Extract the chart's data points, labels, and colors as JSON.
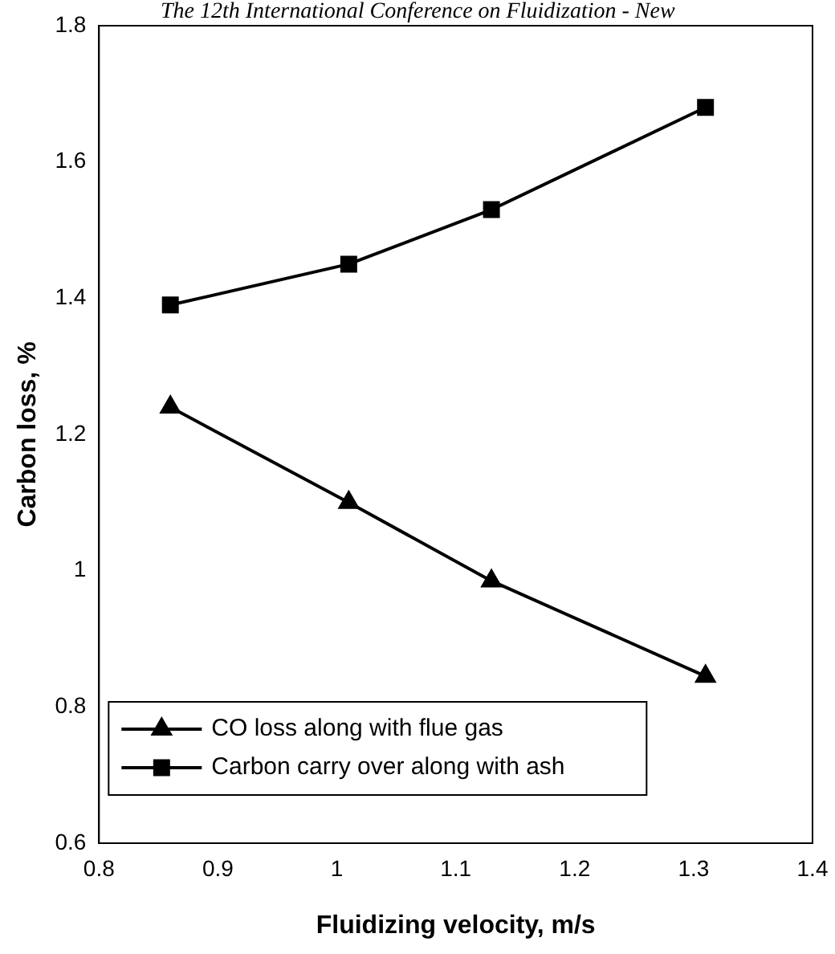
{
  "chart_data": {
    "type": "line",
    "xlabel": "Fluidizing velocity, m/s",
    "ylabel": "Carbon loss, %",
    "annotations": [
      "The 12th International Conference on Fluidization - New"
    ],
    "series": [
      {
        "name": "CO loss along with flue gas",
        "color": "#000000",
        "marker": "triangle",
        "x": [
          0.86,
          1.01,
          1.13,
          1.31
        ],
        "values": [
          1.24,
          1.1,
          0.985,
          0.845
        ]
      },
      {
        "name": "Carbon carry over along with ash",
        "color": "#000000",
        "marker": "square",
        "x": [
          0.86,
          1.01,
          1.13,
          1.31
        ],
        "values": [
          1.39,
          1.45,
          1.53,
          1.68
        ]
      }
    ],
    "xlim": [
      0.8,
      1.4
    ],
    "xticks": [
      0.8,
      0.9,
      1,
      1.1,
      1.2,
      1.3,
      1.4
    ],
    "ylim": [
      0.6,
      1.8
    ],
    "yticks": [
      0.6,
      0.8,
      1,
      1.2,
      1.4,
      1.6,
      1.8
    ],
    "grid": false,
    "legend": "bottom left",
    "line_style": "solid"
  }
}
